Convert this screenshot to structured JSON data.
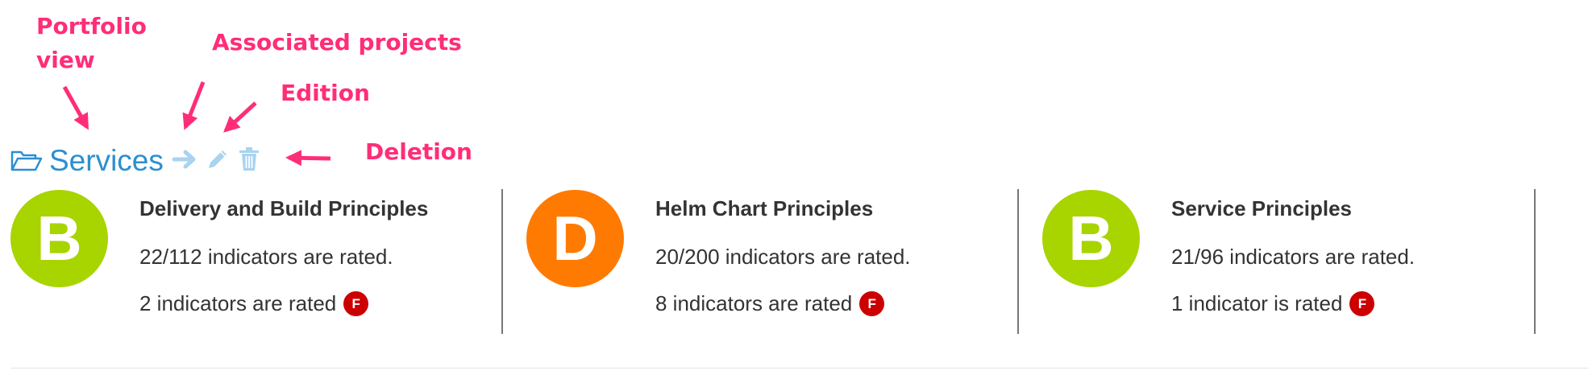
{
  "annotations": {
    "portfolio": "Portfolio view",
    "projects": "Associated projects",
    "edition": "Edition",
    "deletion": "Deletion"
  },
  "header": {
    "title": "Services",
    "icons": [
      "folder-open-icon",
      "arrow-right-icon",
      "pencil-icon",
      "trash-icon"
    ]
  },
  "cards": [
    {
      "grade": "B",
      "grade_color": "#a8d400",
      "title": "Delivery and Build Principles",
      "rated": "22/112 indicators are rated.",
      "failed": "2 indicators are rated",
      "badge": "F"
    },
    {
      "grade": "D",
      "grade_color": "#ff7a00",
      "title": "Helm Chart Principles",
      "rated": "20/200 indicators are rated.",
      "failed": "8 indicators are rated",
      "badge": "F"
    },
    {
      "grade": "B",
      "grade_color": "#a8d400",
      "title": "Service Principles",
      "rated": "21/96 indicators are rated.",
      "failed": "1 indicator is rated",
      "badge": "F"
    }
  ],
  "colors": {
    "annotation": "#ff2d78",
    "title_blue": "#2c8fd1",
    "icon_light_blue": "#a9d3f0",
    "badge_red": "#cc0000"
  }
}
